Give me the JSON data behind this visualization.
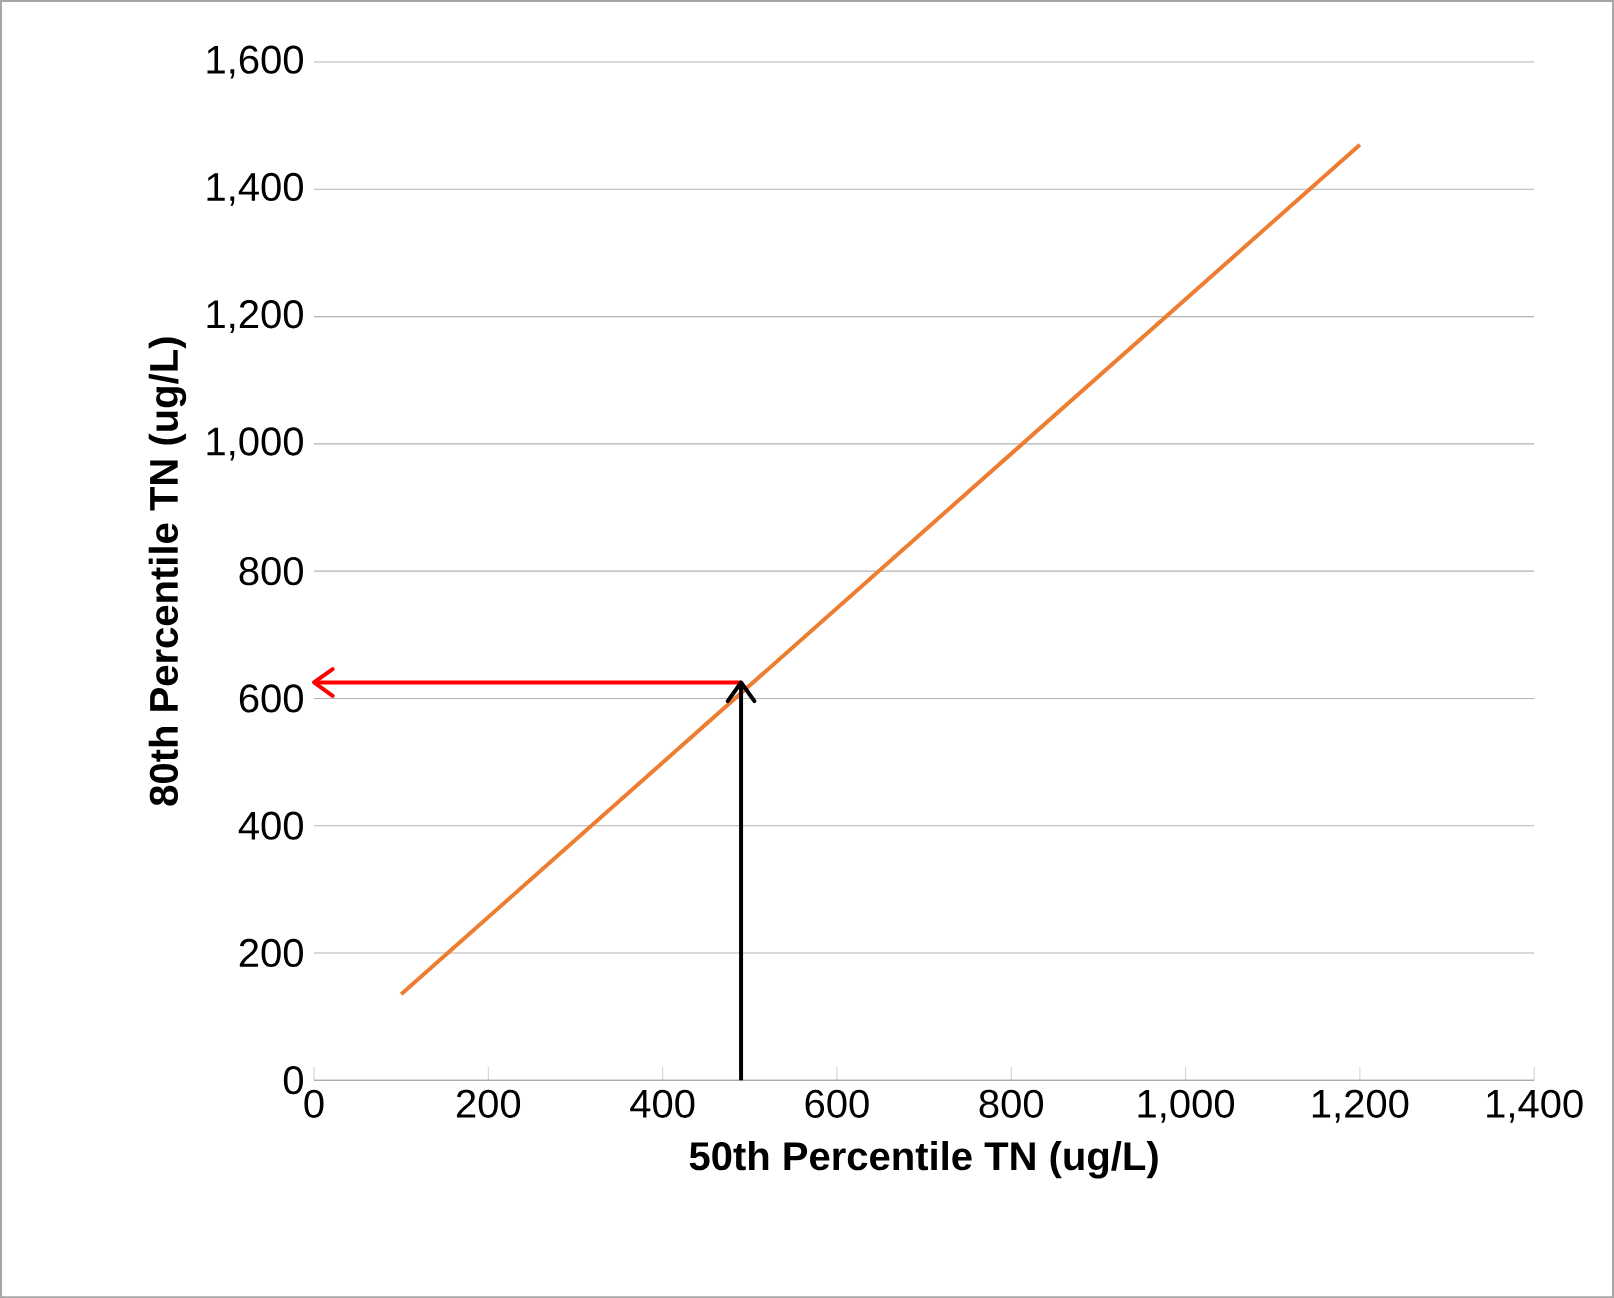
{
  "chart_data": {
    "type": "line",
    "xlabel": "50th Percentile TN (ug/L)",
    "ylabel": "80th Percentile TN (ug/L)",
    "xlim": [
      0,
      1400
    ],
    "xticks": [
      {
        "value": 0,
        "label": "0"
      },
      {
        "value": 200,
        "label": "200"
      },
      {
        "value": 400,
        "label": "400"
      },
      {
        "value": 600,
        "label": "600"
      },
      {
        "value": 800,
        "label": "800"
      },
      {
        "value": 1000,
        "label": "1,000"
      },
      {
        "value": 1200,
        "label": "1,200"
      },
      {
        "value": 1400,
        "label": "1,400"
      }
    ],
    "ylim": [
      0,
      1600
    ],
    "yticks": [
      {
        "value": 0,
        "label": "0"
      },
      {
        "value": 200,
        "label": "200"
      },
      {
        "value": 400,
        "label": "400"
      },
      {
        "value": 600,
        "label": "600"
      },
      {
        "value": 800,
        "label": "800"
      },
      {
        "value": 1000,
        "label": "1,000"
      },
      {
        "value": 1200,
        "label": "1,200"
      },
      {
        "value": 1400,
        "label": "1,400"
      },
      {
        "value": 1600,
        "label": "1,600"
      }
    ],
    "grid": "y",
    "marker": "none",
    "line_style": "solid",
    "series": [
      {
        "color": "#ed7d31",
        "x": [
          100,
          1200
        ],
        "values": [
          135,
          1470
        ]
      },
      {
        "color": "#000000",
        "x": [
          490,
          490
        ],
        "values": [
          0,
          625
        ]
      },
      {
        "color": "#ff0000",
        "x": [
          490,
          0
        ],
        "values": [
          625,
          625
        ]
      }
    ]
  }
}
